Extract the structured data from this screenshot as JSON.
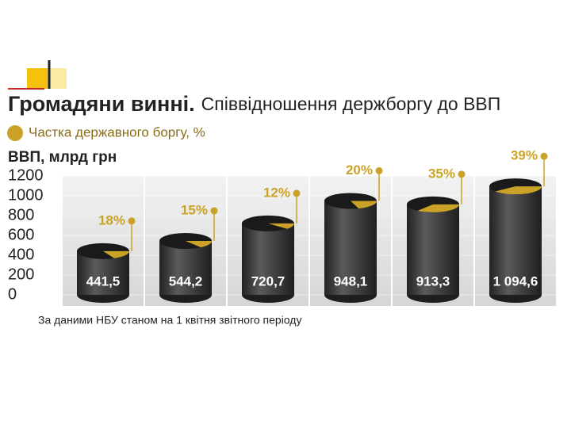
{
  "chart_data": {
    "type": "bar",
    "title": "Громадяни винні.",
    "subtitle": "Співвідношення держборгу до ВВП",
    "y_label": "ВВП, млрд грн",
    "source": "За даними НБУ станом на 1 квітня звітного періоду",
    "categories": [
      null,
      null,
      null,
      null,
      null,
      null
    ],
    "series": [
      {
        "color": "#3a3a3c",
        "values": [
          441.5,
          544.2,
          720.7,
          948.1,
          913.3,
          1094.6
        ],
        "value_labels": [
          "441,5",
          "544,2",
          "720,7",
          "948,1",
          "913,3",
          "1 094,6"
        ]
      },
      {
        "name": "Частка державного боргу, %",
        "color": "#c9a227",
        "values": [
          18,
          15,
          12,
          20,
          35,
          39
        ],
        "value_labels": [
          "18%",
          "15%",
          "12%",
          "20%",
          "35%",
          "39%"
        ]
      }
    ],
    "ylim": [
      0,
      1200
    ],
    "yticks": [
      0,
      200,
      400,
      600,
      800,
      1000,
      1200
    ]
  }
}
